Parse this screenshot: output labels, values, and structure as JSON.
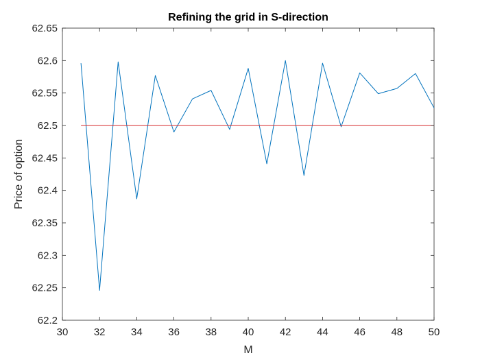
{
  "chart_data": {
    "type": "line",
    "title": "Refining the grid in S-direction",
    "xlabel": "M",
    "ylabel": "Price of option",
    "xlim": [
      30,
      50
    ],
    "ylim": [
      62.2,
      62.65
    ],
    "xticks": [
      "30",
      "32",
      "34",
      "36",
      "38",
      "40",
      "42",
      "44",
      "46",
      "48",
      "50"
    ],
    "yticks": [
      "62.2",
      "62.25",
      "62.3",
      "62.35",
      "62.4",
      "62.45",
      "62.5",
      "62.55",
      "62.6",
      "62.65"
    ],
    "grid": false,
    "series": [
      {
        "color": "#0072bd",
        "x": [
          31,
          32,
          33,
          34,
          35,
          36,
          37,
          38,
          39,
          40,
          41,
          42,
          43,
          44,
          45,
          46,
          47,
          48,
          49,
          50
        ],
        "y": [
          62.596,
          62.246,
          62.598,
          62.387,
          62.577,
          62.49,
          62.541,
          62.554,
          62.494,
          62.588,
          62.441,
          62.6,
          62.423,
          62.596,
          62.498,
          62.581,
          62.549,
          62.557,
          62.58,
          62.527
        ]
      },
      {
        "color": "#d62728",
        "x": [
          31,
          50
        ],
        "y": [
          62.5,
          62.5
        ]
      }
    ]
  }
}
